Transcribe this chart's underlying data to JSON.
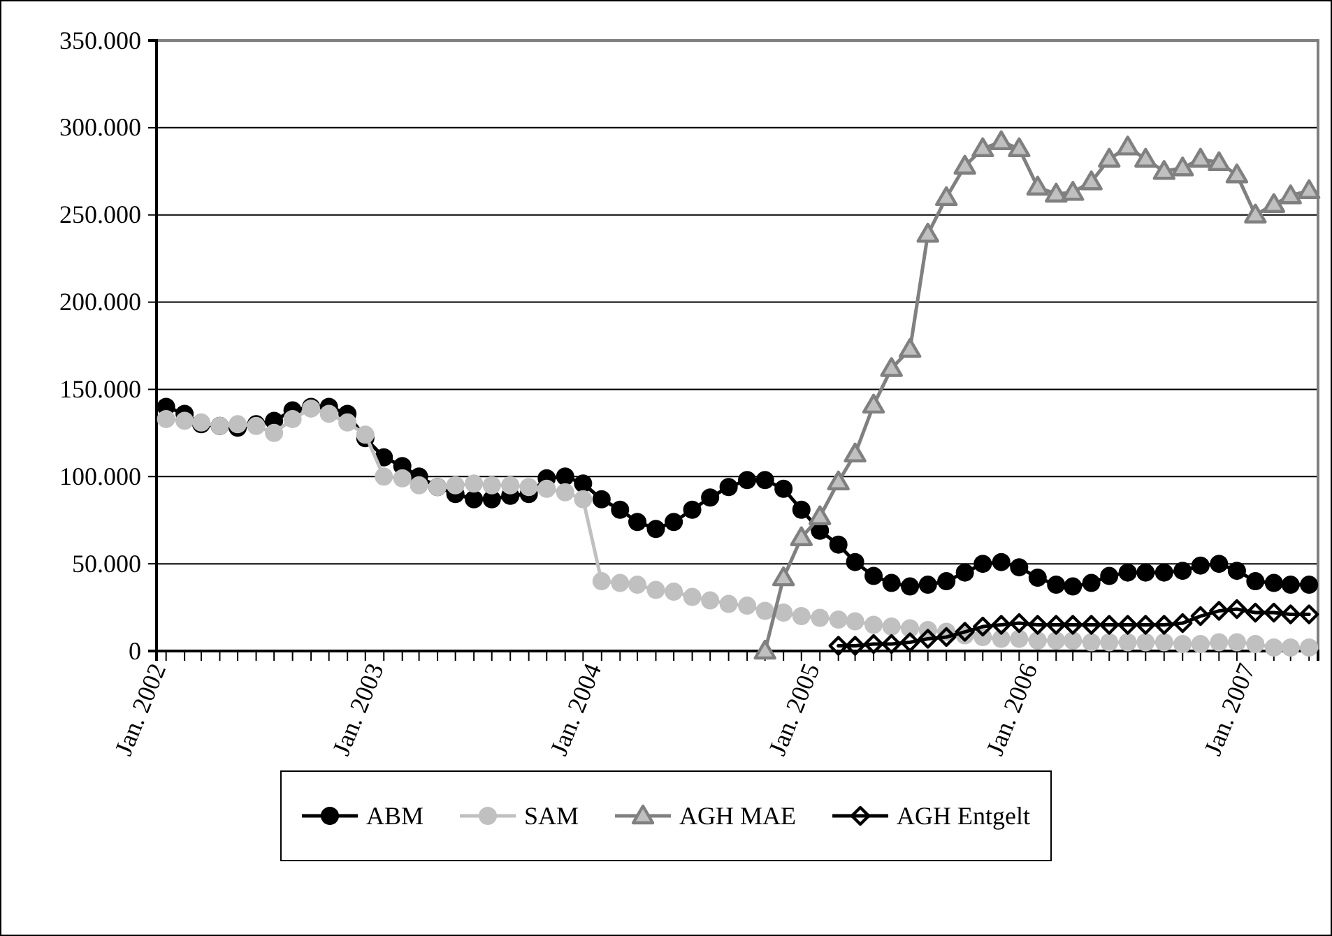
{
  "chart_data": {
    "type": "line",
    "x": [
      "2002-01",
      "2002-02",
      "2002-03",
      "2002-04",
      "2002-05",
      "2002-06",
      "2002-07",
      "2002-08",
      "2002-09",
      "2002-10",
      "2002-11",
      "2002-12",
      "2003-01",
      "2003-02",
      "2003-03",
      "2003-04",
      "2003-05",
      "2003-06",
      "2003-07",
      "2003-08",
      "2003-09",
      "2003-10",
      "2003-11",
      "2003-12",
      "2004-01",
      "2004-02",
      "2004-03",
      "2004-04",
      "2004-05",
      "2004-06",
      "2004-07",
      "2004-08",
      "2004-09",
      "2004-10",
      "2004-11",
      "2004-12",
      "2005-01",
      "2005-02",
      "2005-03",
      "2005-04",
      "2005-05",
      "2005-06",
      "2005-07",
      "2005-08",
      "2005-09",
      "2005-10",
      "2005-11",
      "2005-12",
      "2006-01",
      "2006-02",
      "2006-03",
      "2006-04",
      "2006-05",
      "2006-06",
      "2006-07",
      "2006-08",
      "2006-09",
      "2006-10",
      "2006-11",
      "2006-12",
      "2007-01",
      "2007-02",
      "2007-03",
      "2007-04"
    ],
    "series": [
      {
        "name": "ABM",
        "color": "#000000",
        "marker": "circle",
        "values": [
          140000,
          136000,
          130000,
          129000,
          128000,
          130000,
          132000,
          138000,
          140000,
          140000,
          136000,
          122000,
          111000,
          106000,
          100000,
          94000,
          90000,
          87000,
          87000,
          89000,
          90000,
          99000,
          100000,
          96000,
          87000,
          81000,
          74000,
          70000,
          74000,
          81000,
          88000,
          94000,
          98000,
          98000,
          93000,
          81000,
          69000,
          61000,
          51000,
          43000,
          39000,
          37000,
          38000,
          40000,
          45000,
          50000,
          51000,
          48000,
          42000,
          38000,
          37000,
          39000,
          43000,
          45000,
          45000,
          45000,
          46000,
          49000,
          50000,
          46000,
          40000,
          39000,
          38000,
          38000
        ]
      },
      {
        "name": "SAM",
        "color": "#c0c0c0",
        "marker": "circle",
        "values": [
          133000,
          132000,
          131000,
          129000,
          130000,
          129000,
          125000,
          133000,
          139000,
          136000,
          131000,
          124000,
          100000,
          99000,
          95000,
          94000,
          95000,
          96000,
          95000,
          95000,
          94000,
          93000,
          91000,
          87000,
          40000,
          39000,
          38000,
          35000,
          34000,
          31000,
          29000,
          27000,
          26000,
          23000,
          22000,
          20000,
          19000,
          18000,
          17000,
          15000,
          14000,
          13000,
          12000,
          11000,
          9000,
          8000,
          7000,
          7000,
          6000,
          6000,
          6000,
          5000,
          5000,
          5000,
          5000,
          5000,
          4000,
          4000,
          5000,
          5000,
          4000,
          2000,
          2000,
          2000
        ]
      },
      {
        "name": "AGH MAE",
        "color": "#808080",
        "marker": "triangle",
        "values": [
          null,
          null,
          null,
          null,
          null,
          null,
          null,
          null,
          null,
          null,
          null,
          null,
          null,
          null,
          null,
          null,
          null,
          null,
          null,
          null,
          null,
          null,
          null,
          null,
          null,
          null,
          null,
          null,
          null,
          null,
          null,
          null,
          null,
          0,
          42000,
          65000,
          77000,
          97000,
          113000,
          141000,
          162000,
          173000,
          239000,
          260000,
          278000,
          288000,
          292000,
          288000,
          266000,
          262000,
          263000,
          269000,
          282000,
          289000,
          282000,
          275000,
          277000,
          282000,
          280000,
          273000,
          250000,
          256000,
          261000,
          264000
        ]
      },
      {
        "name": "AGH Entgelt",
        "color": "#000000",
        "marker": "diamond",
        "values": [
          null,
          null,
          null,
          null,
          null,
          null,
          null,
          null,
          null,
          null,
          null,
          null,
          null,
          null,
          null,
          null,
          null,
          null,
          null,
          null,
          null,
          null,
          null,
          null,
          null,
          null,
          null,
          null,
          null,
          null,
          null,
          null,
          null,
          null,
          null,
          null,
          null,
          3000,
          3000,
          4000,
          4000,
          5000,
          7000,
          8000,
          11000,
          14000,
          15000,
          16000,
          15000,
          15000,
          15000,
          15000,
          15000,
          15000,
          15000,
          15000,
          16000,
          20000,
          23000,
          24000,
          22000,
          22000,
          21000,
          21000
        ]
      }
    ],
    "ylim": [
      0,
      350000
    ],
    "yticks": [
      0,
      {
        "value": 50000,
        "label": "50.000"
      },
      {
        "value": 100000,
        "label": "100.000"
      },
      {
        "value": 150000,
        "label": "150.000"
      },
      {
        "value": 200000,
        "label": "200.000"
      },
      {
        "value": 250000,
        "label": "250.000"
      },
      {
        "value": 300000,
        "label": "300.000"
      },
      {
        "value": 350000,
        "label": "350.000"
      }
    ],
    "xlim": [
      "2001-12-16",
      "2007-04-16"
    ],
    "xticks": [
      {
        "value": "2002-01",
        "label": "Jan. 2002"
      },
      {
        "value": "2002-02",
        "label": null
      },
      {
        "value": "2002-03",
        "label": null
      },
      {
        "value": "2002-04",
        "label": null
      },
      {
        "value": "2002-05",
        "label": null
      },
      {
        "value": "2002-06",
        "label": null
      },
      {
        "value": "2002-07",
        "label": null
      },
      {
        "value": "2002-08",
        "label": null
      },
      {
        "value": "2002-09",
        "label": null
      },
      {
        "value": "2002-10",
        "label": null
      },
      {
        "value": "2002-11",
        "label": null
      },
      {
        "value": "2002-12",
        "label": null
      },
      {
        "value": "2003-01",
        "label": "Jan. 2003"
      },
      {
        "value": "2003-02",
        "label": null
      },
      {
        "value": "2003-03",
        "label": null
      },
      {
        "value": "2003-04",
        "label": null
      },
      {
        "value": "2003-05",
        "label": null
      },
      {
        "value": "2003-06",
        "label": null
      },
      {
        "value": "2003-07",
        "label": null
      },
      {
        "value": "2003-08",
        "label": null
      },
      {
        "value": "2003-09",
        "label": null
      },
      {
        "value": "2003-10",
        "label": null
      },
      {
        "value": "2003-11",
        "label": null
      },
      {
        "value": "2003-12",
        "label": null
      },
      {
        "value": "2004-01",
        "label": "Jan. 2004"
      },
      {
        "value": "2004-02",
        "label": null
      },
      {
        "value": "2004-03",
        "label": null
      },
      {
        "value": "2004-04",
        "label": null
      },
      {
        "value": "2004-05",
        "label": null
      },
      {
        "value": "2004-06",
        "label": null
      },
      {
        "value": "2004-07",
        "label": null
      },
      {
        "value": "2004-08",
        "label": null
      },
      {
        "value": "2004-09",
        "label": null
      },
      {
        "value": "2004-10",
        "label": null
      },
      {
        "value": "2004-11",
        "label": null
      },
      {
        "value": "2004-12",
        "label": null
      },
      {
        "value": "2005-01",
        "label": "Jan. 2005"
      },
      {
        "value": "2005-02",
        "label": null
      },
      {
        "value": "2005-03",
        "label": null
      },
      {
        "value": "2005-04",
        "label": null
      },
      {
        "value": "2005-05",
        "label": null
      },
      {
        "value": "2005-06",
        "label": null
      },
      {
        "value": "2005-07",
        "label": null
      },
      {
        "value": "2005-08",
        "label": null
      },
      {
        "value": "2005-09",
        "label": null
      },
      {
        "value": "2005-10",
        "label": null
      },
      {
        "value": "2005-11",
        "label": null
      },
      {
        "value": "2005-12",
        "label": null
      },
      {
        "value": "2006-01",
        "label": "Jan. 2006"
      },
      {
        "value": "2006-02",
        "label": null
      },
      {
        "value": "2006-03",
        "label": null
      },
      {
        "value": "2006-04",
        "label": null
      },
      {
        "value": "2006-05",
        "label": null
      },
      {
        "value": "2006-06",
        "label": null
      },
      {
        "value": "2006-07",
        "label": null
      },
      {
        "value": "2006-08",
        "label": null
      },
      {
        "value": "2006-09",
        "label": null
      },
      {
        "value": "2006-10",
        "label": null
      },
      {
        "value": "2006-11",
        "label": null
      },
      {
        "value": "2006-12",
        "label": null
      },
      {
        "value": "2007-01",
        "label": "Jan. 2007"
      },
      {
        "value": "2007-02",
        "label": null
      },
      {
        "value": "2007-03",
        "label": null
      },
      {
        "value": "2007-04",
        "label": null
      }
    ],
    "grid": "y",
    "legend": "bottom"
  }
}
